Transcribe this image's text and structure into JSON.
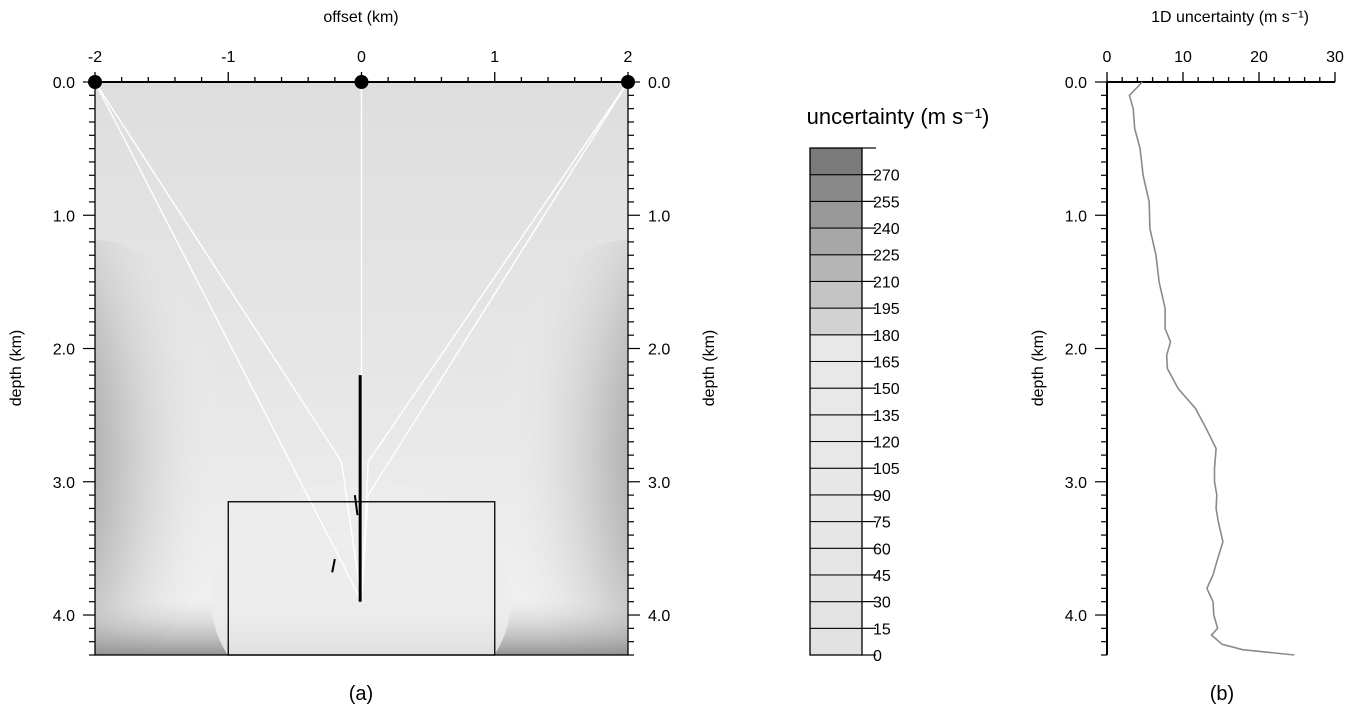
{
  "chart_data": [
    {
      "panel": "(a)",
      "type": "heatmap",
      "title": "",
      "xlabel": "offset (km)",
      "ylabel_left": "depth (km)",
      "ylabel_right": "depth (km)",
      "xlim": [
        -2,
        2
      ],
      "ylim": [
        0,
        4.3
      ],
      "y_inverted": true,
      "x_ticks": [
        -2,
        -1,
        0,
        1,
        2
      ],
      "x_tick_labels": [
        "-2",
        "-1",
        "0",
        "1",
        "2"
      ],
      "y_ticks": [
        0,
        1,
        2,
        3,
        4
      ],
      "y_tick_labels": [
        "0.0",
        "1.0",
        "2.0",
        "3.0",
        "4.0"
      ],
      "sources": [
        {
          "x": -2,
          "y": 0
        },
        {
          "x": 0,
          "y": 0
        },
        {
          "x": 2,
          "y": 0
        }
      ],
      "target_box": {
        "x0": -1,
        "x1": 1,
        "y0": 3.15,
        "y1": 4.3
      },
      "ray_paths": [
        [
          [
            -2,
            0
          ],
          [
            -0.15,
            2.85
          ],
          [
            0,
            3.9
          ]
        ],
        [
          [
            -2,
            0
          ],
          [
            -0.15,
            3.6
          ],
          [
            0,
            3.9
          ]
        ],
        [
          [
            0,
            0
          ],
          [
            0,
            3.9
          ]
        ],
        [
          [
            2,
            0
          ],
          [
            0.05,
            2.85
          ],
          [
            0,
            3.9
          ]
        ],
        [
          [
            2,
            0
          ],
          [
            0.05,
            3.1
          ],
          [
            0,
            3.9
          ]
        ]
      ],
      "well_trace": [
        [
          -0.01,
          2.2
        ],
        [
          -0.01,
          3.9
        ]
      ]
    },
    {
      "panel": "colorbar",
      "type": "colorbar",
      "title": "uncertainty (m s⁻¹)",
      "levels": [
        0,
        15,
        30,
        45,
        60,
        75,
        90,
        105,
        120,
        135,
        150,
        165,
        180,
        195,
        210,
        225,
        240,
        255,
        270,
        285
      ],
      "level_labels": [
        "0",
        "15",
        "30",
        "45",
        "60",
        "75",
        "90",
        "105",
        "120",
        "135",
        "150",
        "165",
        "180",
        "195",
        "210",
        "225",
        "240",
        "255",
        "270"
      ],
      "low_color": "#e2e2e2",
      "high_color": "#7a7a7a"
    },
    {
      "panel": "(b)",
      "type": "line",
      "title": "",
      "xlabel": "1D uncertainty (m s⁻¹)",
      "ylabel": "depth (km)",
      "xlim": [
        0,
        30
      ],
      "ylim": [
        0,
        4.3
      ],
      "y_inverted": true,
      "x_ticks": [
        0,
        10,
        20,
        30
      ],
      "x_tick_labels": [
        "0",
        "10",
        "20",
        "30"
      ],
      "y_ticks": [
        0,
        1,
        2,
        3,
        4
      ],
      "y_tick_labels": [
        "0.0",
        "1.0",
        "2.0",
        "3.0",
        "4.0"
      ],
      "series": [
        {
          "color": "#8a8a8a",
          "x": [
            4.5,
            3.1,
            3.3,
            3.8,
            4.2,
            4.9,
            5.4,
            5.8,
            6.3,
            7.0,
            7.5,
            7.8,
            8.2,
            8.0,
            7.8,
            9.5,
            11.5,
            13.2,
            14.2,
            14.3,
            14.0,
            14.6,
            14.2,
            14.8,
            15.1,
            14.6,
            13.8,
            13.3,
            13.8,
            14.2,
            14.4,
            13.9,
            15.0,
            18.0,
            24.5
          ],
          "y": [
            0.0,
            0.1,
            0.2,
            0.35,
            0.5,
            0.7,
            0.9,
            1.1,
            1.3,
            1.5,
            1.7,
            1.85,
            1.95,
            2.05,
            2.15,
            2.3,
            2.45,
            2.6,
            2.75,
            2.9,
            3.0,
            3.1,
            3.2,
            3.3,
            3.45,
            3.6,
            3.7,
            3.8,
            3.9,
            4.0,
            4.1,
            4.15,
            4.22,
            4.26,
            4.3
          ]
        }
      ]
    }
  ],
  "captions": {
    "a": "(a)",
    "b": "(b)"
  }
}
